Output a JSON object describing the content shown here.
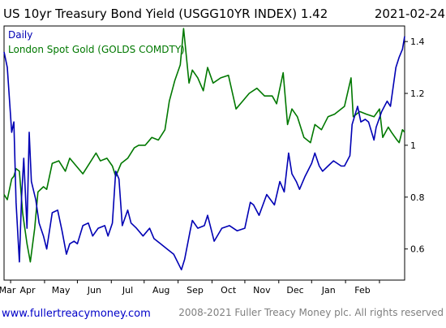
{
  "header": {
    "title": "US 10yr Treasury Bond Yield (USGG10YR INDEX) 1.42",
    "date": "2021-02-24"
  },
  "legend": {
    "frequency": "Daily",
    "overlay_label": "London Spot Gold (GOLDS COMDTY)"
  },
  "footer": {
    "url": "www.fullertreacymoney.com",
    "copyright": "2008-2021 Fuller Treacy Money plc. All rights reserved"
  },
  "colors": {
    "yield_line": "#0000b4",
    "gold_line": "#007800",
    "frame": "#000000",
    "footer_url": "#0000c8"
  },
  "chart_data": {
    "type": "line",
    "title": "US 10yr Treasury Bond Yield (USGG10YR INDEX) 1.42",
    "x_axis": {
      "tick_labels": [
        "Mar",
        "Apr",
        "May",
        "Jun",
        "Jul",
        "Aug",
        "Sep",
        "Oct",
        "Nov",
        "Dec",
        "Jan",
        "Feb"
      ],
      "start": "2020-02-24",
      "end": "2021-02-24"
    },
    "y_axis": {
      "position": "right",
      "tick_labels": [
        "0.6",
        "0.8",
        "1",
        "1.2",
        "1.4"
      ],
      "ticks": [
        0.6,
        0.8,
        1.0,
        1.2,
        1.4
      ],
      "range": [
        0.48,
        1.46
      ]
    },
    "grid": false,
    "legend_position": "top-left",
    "series": [
      {
        "name": "Daily",
        "color": "#0000b4",
        "points": [
          [
            "2020-02-24",
            1.36
          ],
          [
            "2020-02-27",
            1.3
          ],
          [
            "2020-03-02",
            1.05
          ],
          [
            "2020-03-04",
            1.09
          ],
          [
            "2020-03-06",
            0.78
          ],
          [
            "2020-03-09",
            0.55
          ],
          [
            "2020-03-11",
            0.8
          ],
          [
            "2020-03-13",
            0.95
          ],
          [
            "2020-03-16",
            0.68
          ],
          [
            "2020-03-18",
            1.05
          ],
          [
            "2020-03-20",
            0.86
          ],
          [
            "2020-03-24",
            0.79
          ],
          [
            "2020-03-27",
            0.7
          ],
          [
            "2020-03-31",
            0.65
          ],
          [
            "2020-04-03",
            0.6
          ],
          [
            "2020-04-08",
            0.74
          ],
          [
            "2020-04-13",
            0.75
          ],
          [
            "2020-04-17",
            0.67
          ],
          [
            "2020-04-21",
            0.58
          ],
          [
            "2020-04-24",
            0.62
          ],
          [
            "2020-04-28",
            0.63
          ],
          [
            "2020-05-01",
            0.62
          ],
          [
            "2020-05-06",
            0.69
          ],
          [
            "2020-05-11",
            0.7
          ],
          [
            "2020-05-15",
            0.65
          ],
          [
            "2020-05-20",
            0.68
          ],
          [
            "2020-05-26",
            0.69
          ],
          [
            "2020-05-29",
            0.65
          ],
          [
            "2020-06-02",
            0.7
          ],
          [
            "2020-06-05",
            0.9
          ],
          [
            "2020-06-08",
            0.87
          ],
          [
            "2020-06-11",
            0.69
          ],
          [
            "2020-06-16",
            0.75
          ],
          [
            "2020-06-19",
            0.7
          ],
          [
            "2020-06-24",
            0.68
          ],
          [
            "2020-06-30",
            0.65
          ],
          [
            "2020-07-06",
            0.68
          ],
          [
            "2020-07-10",
            0.64
          ],
          [
            "2020-07-16",
            0.62
          ],
          [
            "2020-07-22",
            0.6
          ],
          [
            "2020-07-28",
            0.58
          ],
          [
            "2020-08-04",
            0.52
          ],
          [
            "2020-08-07",
            0.56
          ],
          [
            "2020-08-12",
            0.67
          ],
          [
            "2020-08-14",
            0.71
          ],
          [
            "2020-08-19",
            0.68
          ],
          [
            "2020-08-25",
            0.69
          ],
          [
            "2020-08-28",
            0.73
          ],
          [
            "2020-09-03",
            0.63
          ],
          [
            "2020-09-10",
            0.68
          ],
          [
            "2020-09-17",
            0.69
          ],
          [
            "2020-09-24",
            0.67
          ],
          [
            "2020-10-01",
            0.68
          ],
          [
            "2020-10-06",
            0.78
          ],
          [
            "2020-10-09",
            0.77
          ],
          [
            "2020-10-14",
            0.73
          ],
          [
            "2020-10-21",
            0.81
          ],
          [
            "2020-10-28",
            0.77
          ],
          [
            "2020-11-02",
            0.86
          ],
          [
            "2020-11-06",
            0.82
          ],
          [
            "2020-11-10",
            0.97
          ],
          [
            "2020-11-13",
            0.89
          ],
          [
            "2020-11-17",
            0.86
          ],
          [
            "2020-11-20",
            0.83
          ],
          [
            "2020-11-25",
            0.88
          ],
          [
            "2020-12-01",
            0.93
          ],
          [
            "2020-12-04",
            0.97
          ],
          [
            "2020-12-08",
            0.92
          ],
          [
            "2020-12-11",
            0.9
          ],
          [
            "2020-12-16",
            0.92
          ],
          [
            "2020-12-21",
            0.94
          ],
          [
            "2020-12-28",
            0.92
          ],
          [
            "2020-12-31",
            0.92
          ],
          [
            "2021-01-05",
            0.96
          ],
          [
            "2021-01-07",
            1.08
          ],
          [
            "2021-01-12",
            1.15
          ],
          [
            "2021-01-15",
            1.09
          ],
          [
            "2021-01-19",
            1.1
          ],
          [
            "2021-01-22",
            1.09
          ],
          [
            "2021-01-27",
            1.02
          ],
          [
            "2021-01-29",
            1.07
          ],
          [
            "2021-02-03",
            1.13
          ],
          [
            "2021-02-08",
            1.17
          ],
          [
            "2021-02-11",
            1.15
          ],
          [
            "2021-02-16",
            1.3
          ],
          [
            "2021-02-19",
            1.34
          ],
          [
            "2021-02-22",
            1.37
          ],
          [
            "2021-02-24",
            1.42
          ]
        ]
      },
      {
        "name": "London Spot Gold (GOLDS COMDTY)",
        "color": "#007800",
        "points": [
          [
            "2020-02-24",
            0.81
          ],
          [
            "2020-02-27",
            0.79
          ],
          [
            "2020-03-02",
            0.87
          ],
          [
            "2020-03-04",
            0.88
          ],
          [
            "2020-03-06",
            0.91
          ],
          [
            "2020-03-09",
            0.9
          ],
          [
            "2020-03-12",
            0.74
          ],
          [
            "2020-03-16",
            0.62
          ],
          [
            "2020-03-19",
            0.55
          ],
          [
            "2020-03-23",
            0.68
          ],
          [
            "2020-03-26",
            0.82
          ],
          [
            "2020-03-31",
            0.84
          ],
          [
            "2020-04-03",
            0.83
          ],
          [
            "2020-04-08",
            0.93
          ],
          [
            "2020-04-14",
            0.94
          ],
          [
            "2020-04-20",
            0.9
          ],
          [
            "2020-04-24",
            0.95
          ],
          [
            "2020-04-30",
            0.92
          ],
          [
            "2020-05-06",
            0.89
          ],
          [
            "2020-05-12",
            0.93
          ],
          [
            "2020-05-18",
            0.97
          ],
          [
            "2020-05-22",
            0.94
          ],
          [
            "2020-05-28",
            0.95
          ],
          [
            "2020-06-02",
            0.92
          ],
          [
            "2020-06-05",
            0.88
          ],
          [
            "2020-06-10",
            0.93
          ],
          [
            "2020-06-16",
            0.95
          ],
          [
            "2020-06-22",
            0.99
          ],
          [
            "2020-06-26",
            1.0
          ],
          [
            "2020-07-02",
            1.0
          ],
          [
            "2020-07-08",
            1.03
          ],
          [
            "2020-07-14",
            1.02
          ],
          [
            "2020-07-20",
            1.06
          ],
          [
            "2020-07-24",
            1.17
          ],
          [
            "2020-07-29",
            1.25
          ],
          [
            "2020-08-03",
            1.31
          ],
          [
            "2020-08-06",
            1.45
          ],
          [
            "2020-08-11",
            1.24
          ],
          [
            "2020-08-14",
            1.29
          ],
          [
            "2020-08-19",
            1.26
          ],
          [
            "2020-08-24",
            1.21
          ],
          [
            "2020-08-28",
            1.3
          ],
          [
            "2020-09-02",
            1.24
          ],
          [
            "2020-09-09",
            1.26
          ],
          [
            "2020-09-16",
            1.27
          ],
          [
            "2020-09-23",
            1.14
          ],
          [
            "2020-09-29",
            1.17
          ],
          [
            "2020-10-05",
            1.2
          ],
          [
            "2020-10-12",
            1.22
          ],
          [
            "2020-10-19",
            1.19
          ],
          [
            "2020-10-26",
            1.19
          ],
          [
            "2020-10-30",
            1.16
          ],
          [
            "2020-11-05",
            1.28
          ],
          [
            "2020-11-09",
            1.08
          ],
          [
            "2020-11-13",
            1.14
          ],
          [
            "2020-11-18",
            1.11
          ],
          [
            "2020-11-24",
            1.03
          ],
          [
            "2020-11-30",
            1.01
          ],
          [
            "2020-12-04",
            1.08
          ],
          [
            "2020-12-10",
            1.06
          ],
          [
            "2020-12-16",
            1.11
          ],
          [
            "2020-12-22",
            1.12
          ],
          [
            "2020-12-31",
            1.15
          ],
          [
            "2021-01-06",
            1.26
          ],
          [
            "2021-01-08",
            1.11
          ],
          [
            "2021-01-14",
            1.13
          ],
          [
            "2021-01-20",
            1.12
          ],
          [
            "2021-01-27",
            1.11
          ],
          [
            "2021-02-01",
            1.14
          ],
          [
            "2021-02-04",
            1.03
          ],
          [
            "2021-02-09",
            1.07
          ],
          [
            "2021-02-12",
            1.05
          ],
          [
            "2021-02-17",
            1.02
          ],
          [
            "2021-02-19",
            1.01
          ],
          [
            "2021-02-22",
            1.06
          ],
          [
            "2021-02-24",
            1.05
          ]
        ]
      }
    ]
  }
}
